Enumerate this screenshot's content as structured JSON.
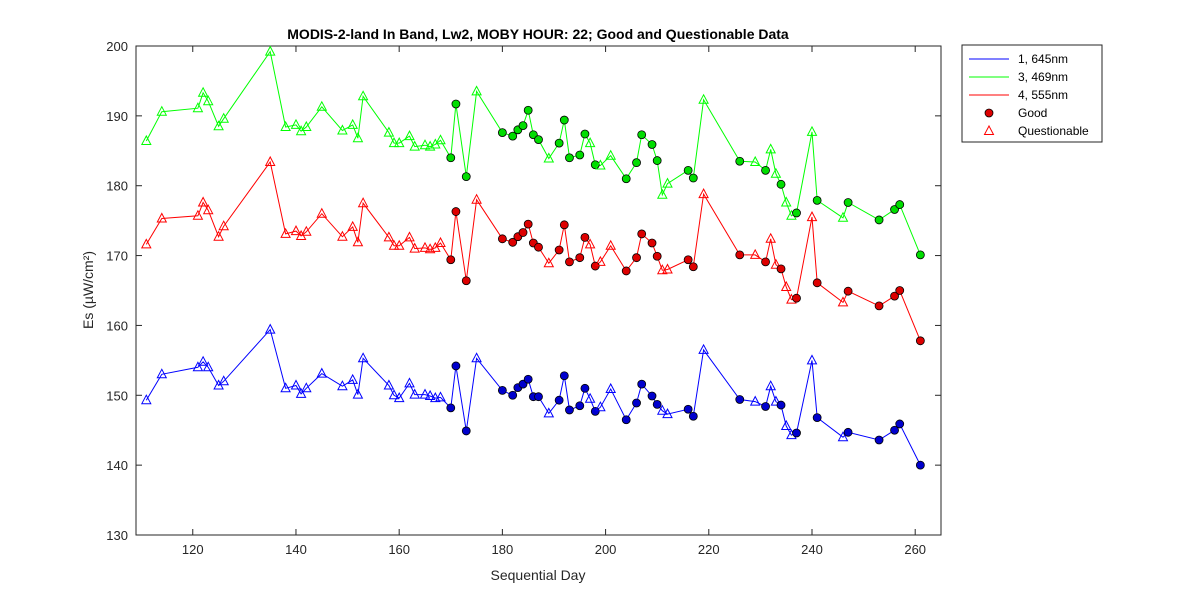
{
  "chart_data": {
    "type": "line",
    "title": "MODIS-2-land In Band,  Lw2, MOBY HOUR: 22;  Good and Questionable Data",
    "xlabel": "Sequential Day",
    "ylabel": "Es (µW/cm²)",
    "xlim": [
      109,
      265
    ],
    "ylim": [
      130,
      200
    ],
    "xticks": [
      120,
      140,
      160,
      180,
      200,
      220,
      240,
      260
    ],
    "yticks": [
      130,
      140,
      150,
      160,
      170,
      180,
      190,
      200
    ],
    "grid": false,
    "legend_position": "outside-top-right",
    "x": [
      111,
      114,
      121,
      122,
      123,
      125,
      126,
      135,
      138,
      140,
      141,
      142,
      145,
      149,
      151,
      152,
      153,
      158,
      159,
      160,
      162,
      163,
      165,
      166,
      167,
      168,
      170,
      171,
      173,
      175,
      180,
      182,
      183,
      184,
      185,
      186,
      187,
      189,
      191,
      192,
      193,
      195,
      196,
      197,
      198,
      199,
      201,
      204,
      206,
      207,
      209,
      210,
      211,
      212,
      216,
      217,
      219,
      226,
      229,
      231,
      232,
      233,
      234,
      235,
      236,
      237,
      240,
      241,
      246,
      247,
      253,
      256,
      257,
      261
    ],
    "flags": [
      "Q",
      "Q",
      "Q",
      "Q",
      "Q",
      "Q",
      "Q",
      "Q",
      "Q",
      "Q",
      "Q",
      "Q",
      "Q",
      "Q",
      "Q",
      "Q",
      "Q",
      "Q",
      "Q",
      "Q",
      "Q",
      "Q",
      "Q",
      "Q",
      "Q",
      "Q",
      "G",
      "G",
      "G",
      "Q",
      "G",
      "G",
      "G",
      "G",
      "G",
      "G",
      "G",
      "Q",
      "G",
      "G",
      "G",
      "G",
      "G",
      "Q",
      "G",
      "Q",
      "Q",
      "G",
      "G",
      "G",
      "G",
      "G",
      "Q",
      "Q",
      "G",
      "G",
      "Q",
      "G",
      "Q",
      "G",
      "Q",
      "Q",
      "G",
      "Q",
      "Q",
      "G",
      "Q",
      "G",
      "Q",
      "G",
      "G",
      "G",
      "G",
      "G"
    ],
    "series": [
      {
        "name": "1, 645nm",
        "color": "#0000ff",
        "fill_good": "#0000cd",
        "values": [
          149.3,
          153.0,
          154.0,
          154.8,
          154.0,
          151.4,
          152.0,
          159.4,
          151.0,
          151.4,
          150.2,
          151.0,
          153.1,
          151.3,
          152.2,
          150.1,
          155.3,
          151.4,
          150.0,
          149.6,
          151.7,
          150.1,
          150.1,
          149.9,
          149.6,
          149.7,
          148.2,
          154.2,
          144.9,
          155.3,
          150.7,
          150.0,
          151.1,
          151.6,
          152.3,
          149.8,
          149.8,
          147.4,
          149.3,
          152.8,
          147.9,
          148.5,
          151.0,
          149.5,
          147.7,
          148.3,
          150.9,
          146.5,
          148.9,
          151.6,
          149.9,
          148.7,
          147.8,
          147.3,
          148.0,
          147.0,
          156.5,
          149.4,
          149.1,
          148.4,
          151.3,
          149.1,
          148.6,
          145.6,
          144.3,
          144.6,
          155.0,
          146.8,
          144.0,
          144.7,
          143.6,
          145.0,
          145.9,
          140.0
        ]
      },
      {
        "name": "3, 469nm",
        "color": "#00ff00",
        "fill_good": "#00dd00",
        "values": [
          186.4,
          190.6,
          191.1,
          193.3,
          192.1,
          188.5,
          189.6,
          199.2,
          188.4,
          188.7,
          187.8,
          188.4,
          191.3,
          187.9,
          188.7,
          186.8,
          192.8,
          187.6,
          186.1,
          186.1,
          187.1,
          185.6,
          185.8,
          185.6,
          185.9,
          186.5,
          184.0,
          191.7,
          181.3,
          193.5,
          187.6,
          187.1,
          188.0,
          188.6,
          190.8,
          187.3,
          186.6,
          183.9,
          186.1,
          189.4,
          184.0,
          184.4,
          187.4,
          186.1,
          183.0,
          182.9,
          184.3,
          181.0,
          183.3,
          187.3,
          185.9,
          183.6,
          178.7,
          180.3,
          182.2,
          181.1,
          192.3,
          183.5,
          183.4,
          182.2,
          185.2,
          181.7,
          180.2,
          177.6,
          175.7,
          176.1,
          187.7,
          177.9,
          175.4,
          177.6,
          175.1,
          176.6,
          177.3,
          170.1
        ]
      },
      {
        "name": "4, 555nm",
        "color": "#ff0000",
        "fill_good": "#dd0000",
        "values": [
          171.6,
          175.3,
          175.7,
          177.6,
          176.5,
          172.7,
          174.2,
          183.4,
          173.1,
          173.5,
          172.8,
          173.4,
          176.0,
          172.7,
          174.1,
          171.9,
          177.5,
          172.6,
          171.4,
          171.4,
          172.6,
          171.0,
          171.1,
          170.9,
          171.1,
          171.8,
          169.4,
          176.3,
          166.4,
          178.0,
          172.4,
          171.9,
          172.7,
          173.3,
          174.5,
          171.8,
          171.2,
          168.9,
          170.8,
          174.4,
          169.1,
          169.7,
          172.6,
          171.6,
          168.5,
          169.1,
          171.4,
          167.8,
          169.7,
          173.1,
          171.8,
          169.9,
          167.9,
          168.0,
          169.4,
          168.4,
          178.8,
          170.1,
          170.1,
          169.1,
          172.4,
          168.7,
          168.1,
          165.5,
          163.7,
          163.9,
          175.5,
          166.1,
          163.3,
          164.9,
          162.8,
          164.2,
          165.0,
          157.8
        ]
      }
    ],
    "markers": {
      "good": "Good",
      "questionable": "Questionable"
    }
  }
}
